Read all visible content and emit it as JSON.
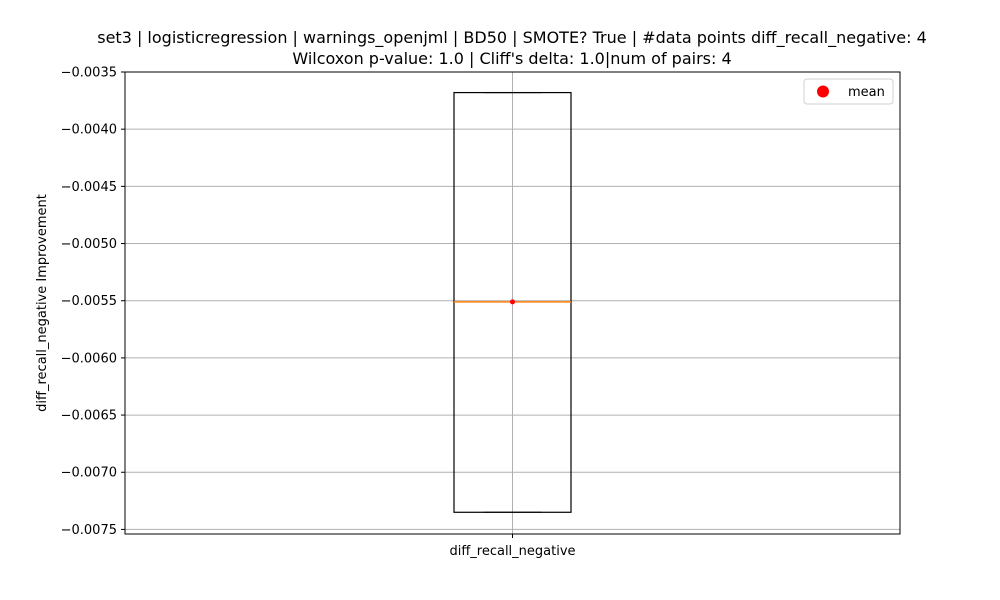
{
  "chart_data": {
    "type": "box",
    "title_line1": "set3 | logisticregression | warnings_openjml | BD50 | SMOTE? True | #data points diff_recall_negative: 4",
    "title_line2": "Wilcoxon p-value: 1.0 | Cliff's delta: 1.0|num of pairs: 4",
    "ylabel": "diff_recall_negative Improvement",
    "categories": [
      "diff_recall_negative"
    ],
    "ylim": [
      -0.00754,
      -0.0035
    ],
    "yticks": [
      -0.0035,
      -0.004,
      -0.0045,
      -0.005,
      -0.0055,
      -0.006,
      -0.0065,
      -0.007,
      -0.0075
    ],
    "ytick_labels": [
      "−0.0035",
      "−0.0040",
      "−0.0045",
      "−0.0050",
      "−0.0055",
      "−0.0060",
      "−0.0065",
      "−0.0070",
      "−0.0075"
    ],
    "box": {
      "whisker_low": -0.00735,
      "q1": -0.00735,
      "median": -0.00551,
      "q3": -0.00368,
      "whisker_high": -0.00368,
      "mean": -0.00551
    },
    "grid": true,
    "legend": {
      "position": "top-right",
      "entries": [
        {
          "label": "mean",
          "color": "#ff0000"
        }
      ]
    },
    "colors": {
      "box": "#000000",
      "median": "#ff7f0e",
      "mean": "#ff0000",
      "grid": "#b0b0b0"
    }
  }
}
